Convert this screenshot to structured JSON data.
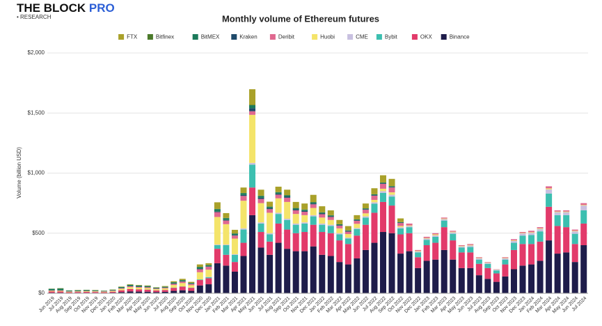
{
  "logo": {
    "brand": "THE BLOCK",
    "tier": "PRO",
    "sub": "• RESEARCH"
  },
  "chart_data": {
    "type": "stacked_bar",
    "title": "Monthly volume of Ethereum futures",
    "y_label": "Volume (billion USD)",
    "categories": [
      "Jun 2019",
      "Jul 2019",
      "Aug 2019",
      "Sep 2019",
      "Oct 2019",
      "Nov 2019",
      "Dec 2019",
      "Jan 2020",
      "Feb 2020",
      "Mar 2020",
      "Apr 2020",
      "May 2020",
      "Jun 2020",
      "Jul 2020",
      "Aug 2020",
      "Sep 2020",
      "Oct 2020",
      "Nov 2020",
      "Dec 2020",
      "Jan 2021",
      "Feb 2021",
      "Mar 2021",
      "Apr 2021",
      "May 2021",
      "Jun 2021",
      "Jul 2021",
      "Aug 2021",
      "Sep 2021",
      "Oct 2021",
      "Nov 2021",
      "Dec 2021",
      "Jan 2022",
      "Feb 2022",
      "Mar 2022",
      "Apr 2022",
      "May 2022",
      "Jun 2022",
      "Jul 2022",
      "Aug 2022",
      "Sep 2022",
      "Oct 2022",
      "Nov 2022",
      "Dec 2022",
      "Jan 2023",
      "Feb 2023",
      "Mar 2023",
      "Apr 2023",
      "May 2023",
      "Jun 2023",
      "Jul 2023",
      "Aug 2023",
      "Sep 2023",
      "Oct 2023",
      "Nov 2023",
      "Dec 2023",
      "Jan 2024",
      "Feb 2024",
      "Mar 2024",
      "Apr 2024",
      "May 2024",
      "Jun 2024",
      "Jul 2024"
    ],
    "ylim": [
      0,
      2000
    ],
    "yticks": [
      {
        "value": 0,
        "label": "$0"
      },
      {
        "value": 500,
        "label": "$500"
      },
      {
        "value": 1000,
        "label": "$1,000"
      },
      {
        "value": 1500,
        "label": "$1,500"
      },
      {
        "value": 2000,
        "label": "$2,000"
      }
    ],
    "grid": true,
    "series": [
      {
        "name": "Binance",
        "color": "#1e1c4a",
        "values": [
          5,
          5,
          3,
          4,
          4,
          4,
          3,
          5,
          10,
          15,
          14,
          13,
          10,
          12,
          20,
          25,
          20,
          65,
          75,
          250,
          230,
          180,
          310,
          650,
          380,
          320,
          420,
          370,
          350,
          350,
          390,
          320,
          310,
          260,
          240,
          290,
          360,
          420,
          510,
          500,
          330,
          350,
          210,
          270,
          280,
          360,
          280,
          210,
          210,
          150,
          120,
          95,
          140,
          200,
          230,
          240,
          270,
          440,
          330,
          340,
          260,
          400
        ]
      },
      {
        "name": "OKX",
        "color": "#e23a6a",
        "values": [
          10,
          10,
          6,
          7,
          8,
          7,
          6,
          8,
          15,
          20,
          18,
          17,
          13,
          15,
          25,
          30,
          25,
          45,
          50,
          120,
          90,
          80,
          110,
          230,
          130,
          110,
          160,
          160,
          150,
          160,
          180,
          190,
          190,
          180,
          170,
          190,
          210,
          250,
          250,
          230,
          160,
          150,
          90,
          130,
          140,
          190,
          160,
          130,
          130,
          95,
          90,
          70,
          100,
          160,
          180,
          170,
          160,
          280,
          230,
          210,
          150,
          180
        ]
      },
      {
        "name": "Bybit",
        "color": "#3cbfb0",
        "values": [
          0,
          0,
          0,
          0,
          0,
          0,
          0,
          0,
          0,
          1,
          1,
          1,
          1,
          1,
          2,
          2,
          2,
          5,
          8,
          30,
          80,
          60,
          110,
          190,
          70,
          60,
          80,
          80,
          70,
          70,
          70,
          60,
          60,
          50,
          45,
          55,
          60,
          75,
          75,
          75,
          50,
          50,
          40,
          45,
          50,
          55,
          55,
          40,
          45,
          35,
          35,
          25,
          40,
          60,
          70,
          75,
          85,
          110,
          90,
          100,
          85,
          110
        ]
      },
      {
        "name": "CME",
        "color": "#c8c0e0",
        "values": [
          0,
          0,
          0,
          0,
          0,
          0,
          0,
          0,
          0,
          0,
          0,
          0,
          0,
          0,
          0,
          0,
          0,
          0,
          3,
          5,
          5,
          5,
          10,
          15,
          10,
          10,
          10,
          10,
          10,
          10,
          10,
          10,
          10,
          10,
          8,
          8,
          10,
          12,
          15,
          15,
          10,
          10,
          8,
          10,
          12,
          12,
          12,
          10,
          12,
          10,
          8,
          6,
          10,
          15,
          18,
          18,
          20,
          35,
          25,
          25,
          20,
          40
        ]
      },
      {
        "name": "Huobi",
        "color": "#f4e46a",
        "values": [
          5,
          5,
          4,
          4,
          5,
          5,
          4,
          6,
          12,
          15,
          14,
          13,
          10,
          12,
          22,
          28,
          20,
          60,
          60,
          230,
          170,
          130,
          230,
          400,
          160,
          170,
          120,
          140,
          80,
          60,
          60,
          50,
          40,
          40,
          30,
          35,
          25,
          20,
          20,
          20,
          10,
          5,
          5,
          5,
          8,
          5,
          5,
          4,
          5,
          4,
          3,
          2,
          4,
          5,
          4,
          5,
          5,
          8,
          5,
          5,
          5,
          5
        ]
      },
      {
        "name": "Deribit",
        "color": "#e0688f",
        "values": [
          3,
          3,
          2,
          2,
          2,
          2,
          2,
          3,
          5,
          7,
          6,
          6,
          5,
          6,
          10,
          12,
          10,
          25,
          25,
          40,
          30,
          25,
          40,
          30,
          35,
          30,
          30,
          35,
          30,
          28,
          30,
          28,
          25,
          22,
          20,
          25,
          30,
          35,
          40,
          40,
          25,
          15,
          7,
          10,
          10,
          8,
          8,
          6,
          8,
          6,
          4,
          2,
          6,
          10,
          8,
          12,
          10,
          17,
          10,
          10,
          10,
          15
        ]
      },
      {
        "name": "Kraken",
        "color": "#1f4a6a",
        "values": [
          2,
          2,
          1,
          1,
          1,
          1,
          1,
          1,
          2,
          2,
          2,
          2,
          1,
          1,
          2,
          2,
          2,
          3,
          3,
          5,
          5,
          5,
          8,
          25,
          10,
          8,
          8,
          8,
          8,
          7,
          7,
          6,
          5,
          5,
          4,
          5,
          5,
          5,
          5,
          5,
          3,
          0,
          0,
          0,
          0,
          0,
          0,
          0,
          0,
          0,
          0,
          0,
          0,
          0,
          0,
          0,
          0,
          0,
          0,
          0,
          0,
          0
        ]
      },
      {
        "name": "BitMEX",
        "color": "#1b7a5a",
        "values": [
          10,
          12,
          6,
          6,
          6,
          5,
          4,
          5,
          8,
          10,
          9,
          8,
          6,
          7,
          10,
          10,
          7,
          15,
          10,
          20,
          15,
          12,
          15,
          25,
          15,
          12,
          12,
          12,
          10,
          10,
          10,
          8,
          8,
          7,
          6,
          6,
          6,
          6,
          6,
          6,
          4,
          0,
          0,
          0,
          0,
          0,
          0,
          0,
          0,
          0,
          0,
          0,
          0,
          0,
          0,
          0,
          0,
          0,
          0,
          0,
          0,
          0
        ]
      },
      {
        "name": "Bitfinex",
        "color": "#4b7a2a",
        "values": [
          3,
          5,
          2,
          2,
          2,
          2,
          1,
          1,
          1,
          1,
          1,
          1,
          1,
          1,
          1,
          1,
          1,
          2,
          1,
          2,
          2,
          1,
          2,
          3,
          2,
          2,
          2,
          2,
          2,
          2,
          2,
          2,
          2,
          1,
          1,
          1,
          1,
          1,
          1,
          1,
          1,
          0,
          0,
          0,
          0,
          0,
          0,
          0,
          0,
          0,
          0,
          0,
          0,
          0,
          0,
          0,
          0,
          0,
          0,
          0,
          0,
          0
        ]
      },
      {
        "name": "FTX",
        "color": "#a9a12a",
        "values": [
          0,
          0,
          0,
          1,
          1,
          1,
          1,
          2,
          3,
          4,
          4,
          4,
          3,
          5,
          8,
          10,
          8,
          20,
          15,
          55,
          40,
          30,
          45,
          130,
          50,
          40,
          45,
          45,
          50,
          50,
          60,
          50,
          40,
          35,
          35,
          35,
          40,
          50,
          60,
          60,
          30,
          0,
          0,
          0,
          0,
          0,
          0,
          0,
          0,
          0,
          0,
          0,
          0,
          0,
          0,
          0,
          0,
          0,
          0,
          0,
          0,
          0
        ]
      }
    ]
  }
}
